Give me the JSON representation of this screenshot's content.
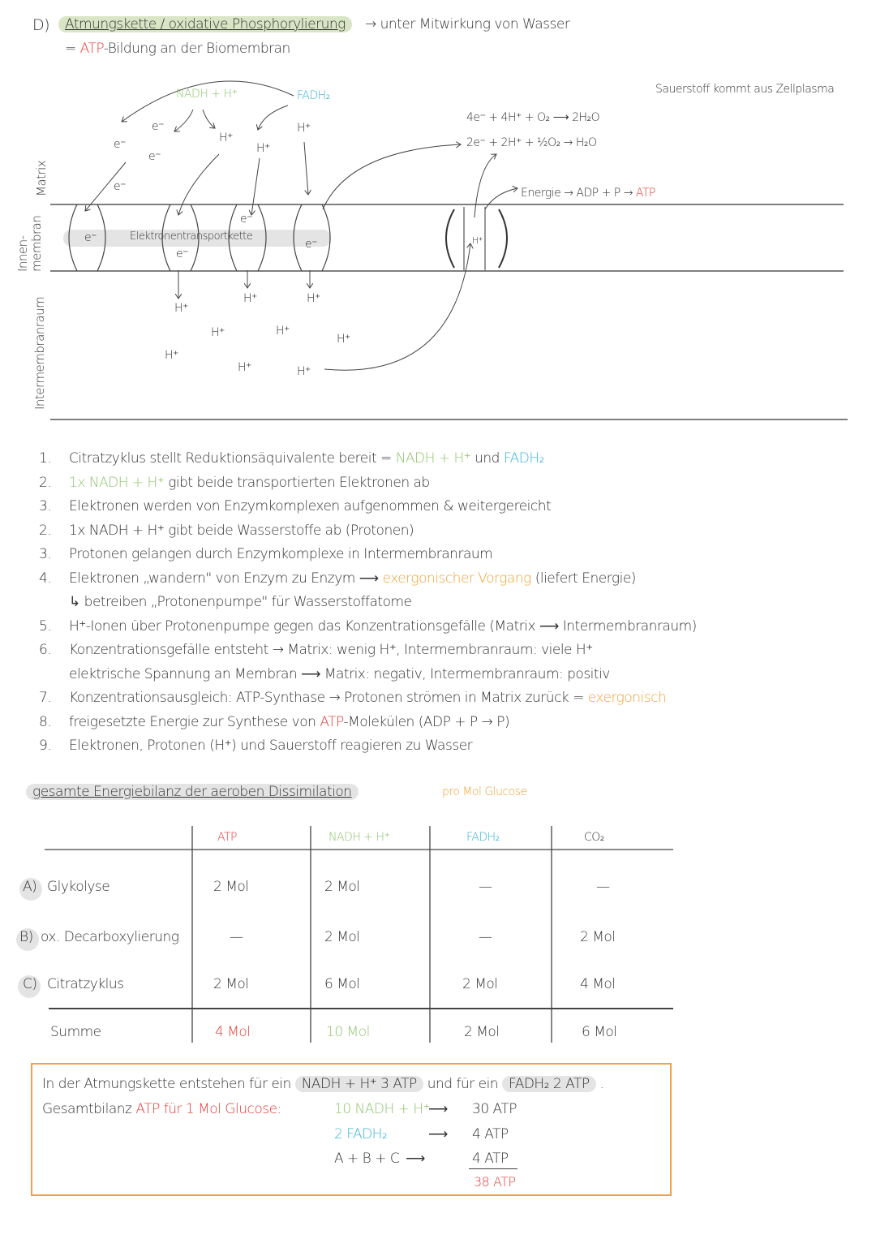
{
  "header": {
    "letter": "D)",
    "title": "Atmungskette / oxidative Phosphorylierung",
    "note": "→ unter Mitwirkung von Wasser",
    "subtitle": [
      {
        "t": "= ",
        "c": "k"
      },
      {
        "t": "ATP",
        "c": "r"
      },
      {
        "t": "-Bildung an der Biomembran",
        "c": "k"
      }
    ]
  },
  "diagram": {
    "zones": {
      "matrix": "Matrix",
      "membrane": "Innen-\nmembran",
      "intermembrane": "Intermembranraum"
    },
    "nadh": "NADH + H⁺",
    "fadh": "FADH₂",
    "electron": "e⁻",
    "proton": "H⁺",
    "chain_label": "Elektronentransportkette",
    "oxygen_note": "Sauerstoff kommt aus Zellplasma",
    "eq1": "4e⁻ + 4H⁺ + O₂ ⟶ 2H₂O",
    "eq2": "2e⁻ + 2H⁺ + ½O₂ → H₂O",
    "energy": [
      {
        "t": "Energie → ADP + P → ",
        "c": "k"
      },
      {
        "t": "ATP",
        "c": "r"
      }
    ],
    "colors": {
      "green": "#8fc46e",
      "cyan": "#36b3d6",
      "red": "#e53935",
      "orange": "#f0a030"
    }
  },
  "steps": [
    {
      "n": "1.",
      "seg": [
        {
          "t": "Citratzyklus stellt Reduktionsäquivalente bereit = ",
          "c": "k"
        },
        {
          "t": "NADH + H⁺",
          "c": "g"
        },
        {
          "t": "  und ",
          "c": "k"
        },
        {
          "t": "FADH₂",
          "c": "c"
        }
      ]
    },
    {
      "n": "2.",
      "seg": [
        {
          "t": "1x NADH + H⁺",
          "c": "g"
        },
        {
          "t": " gibt beide transportierten Elektronen ab",
          "c": "k"
        }
      ]
    },
    {
      "n": "3.",
      "seg": [
        {
          "t": "Elektronen werden von Enzymkomplexen aufgenommen & weitergereicht",
          "c": "k"
        }
      ]
    },
    {
      "n": "2.",
      "seg": [
        {
          "t": "1x NADH + H⁺ gibt beide Wasserstoffe ab (Protonen)",
          "c": "k"
        }
      ]
    },
    {
      "n": "3.",
      "seg": [
        {
          "t": "Protonen gelangen durch Enzymkomplexe in Intermembranraum",
          "c": "k"
        }
      ]
    },
    {
      "n": "4.",
      "seg": [
        {
          "t": "Elektronen „wandern\" von Enzym zu Enzym ⟶ ",
          "c": "k"
        },
        {
          "t": "exergonischer Vorgang",
          "c": "o"
        },
        {
          "t": " (liefert Energie)",
          "c": "k"
        }
      ]
    },
    {
      "n": "",
      "seg": [
        {
          "t": "↳ betreiben „Protonenpumpe\" für Wasserstoffatome",
          "c": "k"
        }
      ]
    },
    {
      "n": "5.",
      "seg": [
        {
          "t": "H⁺-Ionen über Protonenpumpe gegen das Konzentrationsgefälle (Matrix ⟶ Intermembranraum)",
          "c": "k"
        }
      ]
    },
    {
      "n": "6.",
      "seg": [
        {
          "t": "Konzentrationsgefälle entsteht → Matrix: wenig H⁺, Intermembranraum: viele H⁺",
          "c": "k"
        }
      ]
    },
    {
      "n": "",
      "seg": [
        {
          "t": "elektrische Spannung an Membran ⟶ Matrix: negativ, Intermembranraum: positiv",
          "c": "k"
        }
      ]
    },
    {
      "n": "7.",
      "seg": [
        {
          "t": "Konzentrationsausgleich: ATP-Synthase → Protonen strömen in Matrix zurück = ",
          "c": "k"
        },
        {
          "t": "exergonisch",
          "c": "o"
        }
      ]
    },
    {
      "n": "8.",
      "seg": [
        {
          "t": "freigesetzte Energie zur Synthese von ",
          "c": "k"
        },
        {
          "t": "ATP",
          "c": "r"
        },
        {
          "t": "-Molekülen (ADP + P → P)",
          "c": "k"
        }
      ]
    },
    {
      "n": "9.",
      "seg": [
        {
          "t": "Elektronen, Protonen (H⁺) und Sauerstoff reagieren zu Wasser",
          "c": "k"
        }
      ]
    }
  ],
  "balance": {
    "title": "gesamte Energiebilanz der aeroben Dissimilation",
    "subtitle": "pro Mol Glucose",
    "columns": [
      {
        "t": "ATP",
        "c": "r"
      },
      {
        "t": "NADH + H⁺",
        "c": "g"
      },
      {
        "t": "FADH₂",
        "c": "c"
      },
      {
        "t": "CO₂",
        "c": "k"
      }
    ],
    "rows": [
      {
        "label": "A)",
        "name": "Glykolyse",
        "cells": [
          "2 Mol",
          "2 Mol",
          "—",
          "—"
        ]
      },
      {
        "label": "B)",
        "name": "ox. Decarboxylierung",
        "cells": [
          "—",
          "2 Mol",
          "—",
          "2 Mol"
        ]
      },
      {
        "label": "C)",
        "name": "Citratzyklus",
        "cells": [
          "2 Mol",
          "6 Mol",
          "2 Mol",
          "4 Mol"
        ]
      }
    ],
    "sum": {
      "name": "Summe",
      "cells": [
        "4 Mol",
        "10 Mol",
        "2 Mol",
        "6 Mol"
      ]
    }
  },
  "summary": {
    "line1": [
      {
        "t": "In der Atmungskette entstehen für ein ",
        "c": "k"
      },
      {
        "t": "NADH + H⁺  3 ATP",
        "c": "hg"
      },
      {
        "t": " und für ein ",
        "c": "k"
      },
      {
        "t": "FADH₂  2 ATP",
        "c": "hg"
      },
      {
        "t": " .",
        "c": "k"
      }
    ],
    "line2": [
      {
        "t": "Gesamtbilanz ",
        "c": "k"
      },
      {
        "t": "ATP für 1 Mol Glucose:",
        "c": "r"
      }
    ],
    "calc": [
      {
        "l": [
          {
            "t": "10 NADH + H⁺",
            "c": "g"
          }
        ],
        "r": "30 ATP"
      },
      {
        "l": [
          {
            "t": "2  ",
            "c": "c"
          },
          {
            "t": "FADH₂",
            "c": "c"
          }
        ],
        "r": "4 ATP"
      },
      {
        "l": [
          {
            "t": "A + B + C",
            "c": "k"
          }
        ],
        "r": "4 ATP"
      }
    ],
    "total": "38 ATP"
  }
}
